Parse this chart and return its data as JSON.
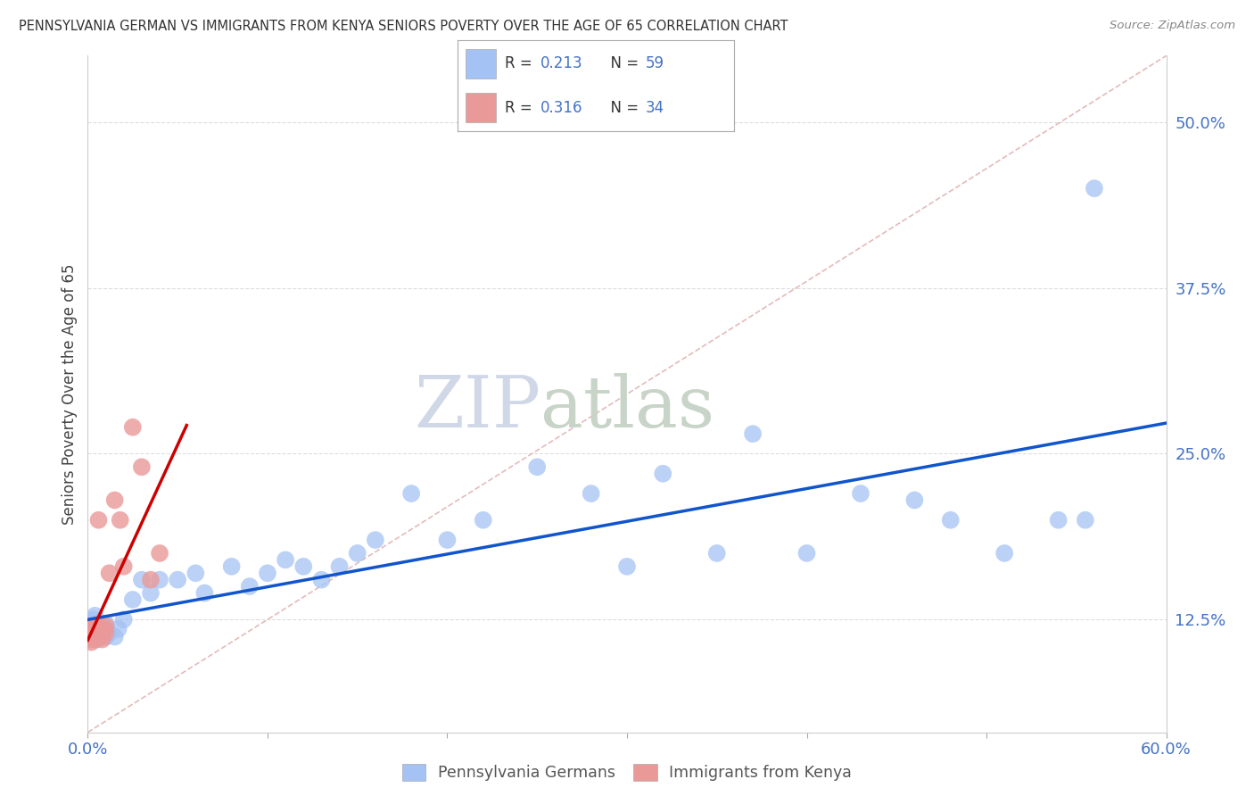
{
  "title": "PENNSYLVANIA GERMAN VS IMMIGRANTS FROM KENYA SENIORS POVERTY OVER THE AGE OF 65 CORRELATION CHART",
  "source": "Source: ZipAtlas.com",
  "ylabel": "Seniors Poverty Over the Age of 65",
  "xlim": [
    0.0,
    0.6
  ],
  "ylim": [
    0.04,
    0.55
  ],
  "yticks": [
    0.125,
    0.25,
    0.375,
    0.5
  ],
  "ytick_labels": [
    "12.5%",
    "25.0%",
    "37.5%",
    "50.0%"
  ],
  "xtick_positions": [
    0.0,
    0.6
  ],
  "xtick_labels": [
    "0.0%",
    "60.0%"
  ],
  "color_blue": "#a4c2f4",
  "color_pink": "#ea9999",
  "trendline_blue": "#1155cc",
  "trendline_pink": "#cc0000",
  "diag_color": "#ccaaaa",
  "watermark_zip": "ZIP",
  "watermark_atlas": "atlas",
  "bg_color": "#ffffff",
  "grid_color": "#dddddd",
  "pa_x": [
    0.001,
    0.001,
    0.002,
    0.002,
    0.003,
    0.003,
    0.003,
    0.004,
    0.004,
    0.004,
    0.005,
    0.005,
    0.005,
    0.006,
    0.006,
    0.007,
    0.007,
    0.008,
    0.008,
    0.009,
    0.01,
    0.01,
    0.012,
    0.015,
    0.017,
    0.02,
    0.025,
    0.03,
    0.035,
    0.04,
    0.05,
    0.06,
    0.065,
    0.08,
    0.09,
    0.1,
    0.11,
    0.12,
    0.13,
    0.14,
    0.15,
    0.16,
    0.18,
    0.2,
    0.22,
    0.25,
    0.28,
    0.3,
    0.32,
    0.35,
    0.37,
    0.4,
    0.43,
    0.46,
    0.48,
    0.51,
    0.54,
    0.555,
    0.56
  ],
  "pa_y": [
    0.115,
    0.12,
    0.118,
    0.122,
    0.115,
    0.118,
    0.125,
    0.112,
    0.12,
    0.128,
    0.11,
    0.115,
    0.122,
    0.112,
    0.12,
    0.115,
    0.118,
    0.112,
    0.118,
    0.115,
    0.112,
    0.122,
    0.115,
    0.112,
    0.118,
    0.125,
    0.14,
    0.155,
    0.145,
    0.155,
    0.155,
    0.16,
    0.145,
    0.165,
    0.15,
    0.16,
    0.17,
    0.165,
    0.155,
    0.165,
    0.175,
    0.185,
    0.22,
    0.185,
    0.2,
    0.24,
    0.22,
    0.165,
    0.235,
    0.175,
    0.265,
    0.175,
    0.22,
    0.215,
    0.2,
    0.175,
    0.2,
    0.2,
    0.45
  ],
  "ke_x": [
    0.001,
    0.001,
    0.001,
    0.001,
    0.002,
    0.002,
    0.002,
    0.002,
    0.003,
    0.003,
    0.003,
    0.004,
    0.004,
    0.004,
    0.005,
    0.005,
    0.006,
    0.006,
    0.006,
    0.007,
    0.007,
    0.008,
    0.008,
    0.009,
    0.01,
    0.01,
    0.012,
    0.015,
    0.018,
    0.02,
    0.025,
    0.03,
    0.035,
    0.04
  ],
  "ke_y": [
    0.115,
    0.118,
    0.12,
    0.112,
    0.11,
    0.112,
    0.115,
    0.108,
    0.112,
    0.115,
    0.118,
    0.11,
    0.115,
    0.12,
    0.112,
    0.118,
    0.115,
    0.2,
    0.12,
    0.112,
    0.115,
    0.11,
    0.115,
    0.118,
    0.115,
    0.12,
    0.16,
    0.215,
    0.2,
    0.165,
    0.27,
    0.24,
    0.155,
    0.175
  ]
}
